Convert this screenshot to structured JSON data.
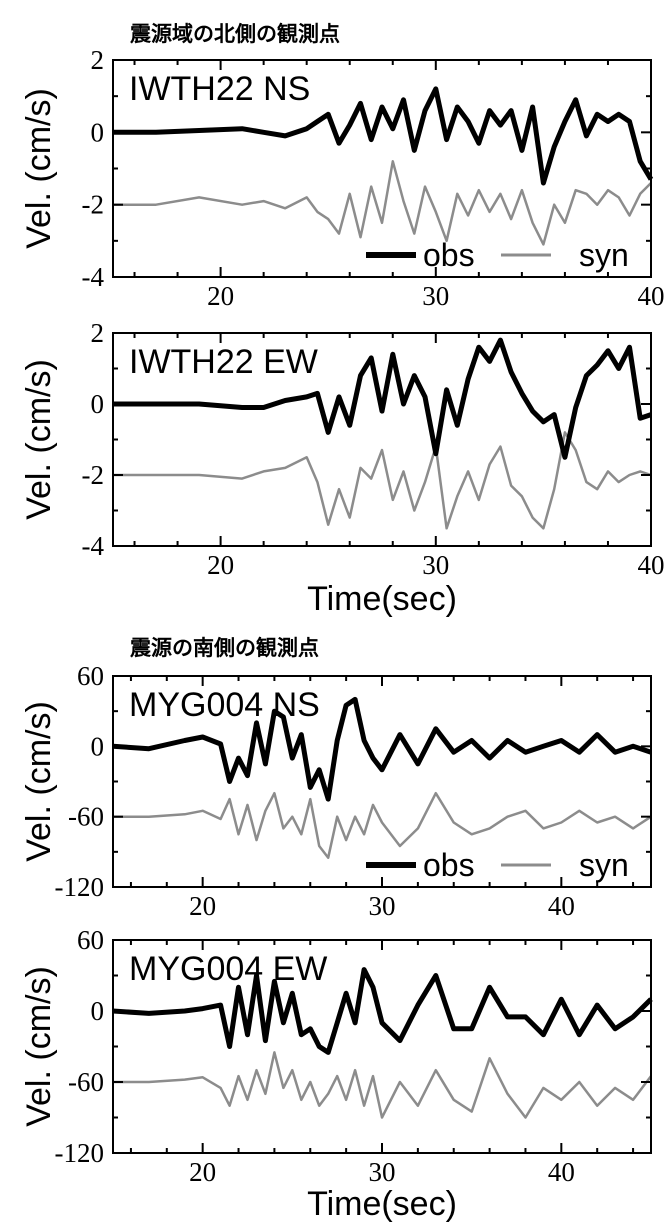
{
  "sections": [
    {
      "heading": "震源域の北側の観測点"
    },
    {
      "heading": "震源の南側の観測点"
    }
  ],
  "colors": {
    "obs": "#000000",
    "syn": "#8c8c8c",
    "frame": "#000000"
  },
  "chart_data": [
    {
      "type": "line",
      "station": "IWTH22 NS",
      "ylabel": "Vel. (cm/s)",
      "xlabel": "",
      "xlim": [
        15,
        40
      ],
      "ylim": [
        -4,
        2
      ],
      "xticks": [
        20,
        30,
        40
      ],
      "yticks": [
        2,
        0,
        -2,
        -4
      ],
      "legend": {
        "position": "bottom-right",
        "labels": [
          "obs",
          "syn"
        ]
      },
      "series": [
        {
          "name": "obs",
          "x": [
            15,
            17,
            19,
            21,
            22,
            23,
            24,
            24.5,
            25,
            25.5,
            26,
            26.5,
            27,
            27.5,
            28,
            28.5,
            29,
            29.5,
            30,
            30.5,
            31,
            31.5,
            32,
            32.5,
            33,
            33.5,
            34,
            34.5,
            35,
            35.5,
            36,
            36.5,
            37,
            37.5,
            38,
            38.5,
            39,
            39.5,
            40
          ],
          "y": [
            0,
            0,
            0.05,
            0.1,
            0,
            -0.1,
            0.1,
            0.3,
            0.5,
            -0.3,
            0.2,
            0.8,
            -0.2,
            0.7,
            0.1,
            0.9,
            -0.5,
            0.6,
            1.2,
            -0.2,
            0.7,
            0.3,
            -0.3,
            0.6,
            0.2,
            0.6,
            -0.5,
            0.7,
            -1.4,
            -0.4,
            0.3,
            0.9,
            -0.1,
            0.5,
            0.3,
            0.5,
            0.3,
            -0.8,
            -1.3
          ]
        },
        {
          "name": "syn",
          "x": [
            15,
            17,
            19,
            21,
            22,
            23,
            24,
            24.5,
            25,
            25.5,
            26,
            26.5,
            27,
            27.5,
            28,
            28.5,
            29,
            29.5,
            30,
            30.5,
            31,
            31.5,
            32,
            32.5,
            33,
            33.5,
            34,
            34.5,
            35,
            35.5,
            36,
            36.5,
            37,
            37.5,
            38,
            38.5,
            39,
            39.5,
            40
          ],
          "y": [
            -2,
            -2,
            -1.8,
            -2,
            -1.9,
            -2.1,
            -1.8,
            -2.2,
            -2.4,
            -2.8,
            -1.7,
            -2.9,
            -1.5,
            -2.5,
            -0.8,
            -1.9,
            -2.8,
            -1.5,
            -2.2,
            -3,
            -1.7,
            -2.3,
            -1.6,
            -2.2,
            -1.7,
            -2.4,
            -1.6,
            -2.5,
            -3.1,
            -2,
            -2.5,
            -1.6,
            -1.7,
            -2,
            -1.6,
            -1.8,
            -2.3,
            -1.7,
            -1.4
          ]
        }
      ]
    },
    {
      "type": "line",
      "station": "IWTH22 EW",
      "ylabel": "Vel. (cm/s)",
      "xlabel": "Time(sec)",
      "xlim": [
        15,
        40
      ],
      "ylim": [
        -4,
        2
      ],
      "xticks": [
        20,
        30,
        40
      ],
      "yticks": [
        2,
        0,
        -2,
        -4
      ],
      "series": [
        {
          "name": "obs",
          "x": [
            15,
            17,
            19,
            21,
            22,
            23,
            24,
            24.5,
            25,
            25.5,
            26,
            26.5,
            27,
            27.5,
            28,
            28.5,
            29,
            29.5,
            30,
            30.5,
            31,
            31.5,
            32,
            32.5,
            33,
            33.5,
            34,
            34.5,
            35,
            35.5,
            36,
            36.5,
            37,
            37.5,
            38,
            38.5,
            39,
            39.5,
            40
          ],
          "y": [
            0,
            0,
            0,
            -0.1,
            -0.1,
            0.1,
            0.2,
            0.3,
            -0.8,
            0.2,
            -0.6,
            0.8,
            1.3,
            -0.2,
            1.4,
            0,
            0.8,
            0.2,
            -1.4,
            0.4,
            -0.6,
            0.7,
            1.6,
            1.2,
            1.8,
            0.9,
            0.3,
            -0.2,
            -0.5,
            -0.3,
            -1.5,
            -0.1,
            0.8,
            1.1,
            1.5,
            1.0,
            1.6,
            -0.4,
            -0.3
          ]
        },
        {
          "name": "syn",
          "x": [
            15,
            17,
            19,
            21,
            22,
            23,
            24,
            24.5,
            25,
            25.5,
            26,
            26.5,
            27,
            27.5,
            28,
            28.5,
            29,
            29.5,
            30,
            30.5,
            31,
            31.5,
            32,
            32.5,
            33,
            33.5,
            34,
            34.5,
            35,
            35.5,
            36,
            36.5,
            37,
            37.5,
            38,
            38.5,
            39,
            39.5,
            40
          ],
          "y": [
            -2,
            -2,
            -2,
            -2.1,
            -1.9,
            -1.8,
            -1.5,
            -2.2,
            -3.4,
            -2.4,
            -3.2,
            -1.8,
            -2.1,
            -1.3,
            -2.7,
            -1.9,
            -3.0,
            -2.2,
            -1.2,
            -3.5,
            -2.6,
            -1.9,
            -2.7,
            -1.7,
            -1.2,
            -2.3,
            -2.6,
            -3.2,
            -3.5,
            -2.4,
            -0.8,
            -1.3,
            -2.2,
            -2.4,
            -1.9,
            -2.2,
            -2.0,
            -1.9,
            -2.0
          ]
        }
      ]
    },
    {
      "type": "line",
      "station": "MYG004 NS",
      "ylabel": "Vel. (cm/s)",
      "xlabel": "",
      "xlim": [
        15,
        45
      ],
      "ylim": [
        -120,
        60
      ],
      "xticks": [
        20,
        30,
        40
      ],
      "yticks": [
        60,
        0,
        -60,
        -120
      ],
      "legend": {
        "position": "bottom-right",
        "labels": [
          "obs",
          "syn"
        ]
      },
      "series": [
        {
          "name": "obs",
          "x": [
            15,
            17,
            19,
            20,
            21,
            21.5,
            22,
            22.5,
            23,
            23.5,
            24,
            24.5,
            25,
            25.5,
            26,
            26.5,
            27,
            27.5,
            28,
            28.5,
            29,
            29.5,
            30,
            31,
            32,
            33,
            34,
            35,
            36,
            37,
            38,
            39,
            40,
            41,
            42,
            43,
            44,
            45
          ],
          "y": [
            0,
            -2,
            5,
            8,
            2,
            -30,
            -10,
            -25,
            20,
            -15,
            30,
            25,
            -10,
            10,
            -35,
            -20,
            -45,
            5,
            35,
            40,
            5,
            -10,
            -20,
            10,
            -15,
            15,
            -5,
            5,
            -10,
            5,
            -5,
            0,
            5,
            -5,
            10,
            -5,
            0,
            -5
          ]
        },
        {
          "name": "syn",
          "x": [
            15,
            17,
            19,
            20,
            21,
            21.5,
            22,
            22.5,
            23,
            23.5,
            24,
            24.5,
            25,
            25.5,
            26,
            26.5,
            27,
            27.5,
            28,
            28.5,
            29,
            29.5,
            30,
            31,
            32,
            33,
            34,
            35,
            36,
            37,
            38,
            39,
            40,
            41,
            42,
            43,
            44,
            45
          ],
          "y": [
            -60,
            -60,
            -58,
            -55,
            -62,
            -45,
            -75,
            -50,
            -80,
            -55,
            -40,
            -70,
            -60,
            -75,
            -45,
            -85,
            -95,
            -60,
            -80,
            -60,
            -75,
            -50,
            -65,
            -85,
            -70,
            -40,
            -65,
            -75,
            -70,
            -60,
            -55,
            -70,
            -65,
            -55,
            -65,
            -60,
            -70,
            -60
          ]
        }
      ]
    },
    {
      "type": "line",
      "station": "MYG004 EW",
      "ylabel": "Vel. (cm/s)",
      "xlabel": "Time(sec)",
      "xlim": [
        15,
        45
      ],
      "ylim": [
        -120,
        60
      ],
      "xticks": [
        20,
        30,
        40
      ],
      "yticks": [
        60,
        0,
        -60,
        -120
      ],
      "series": [
        {
          "name": "obs",
          "x": [
            15,
            17,
            19,
            20,
            21,
            21.5,
            22,
            22.5,
            23,
            23.5,
            24,
            24.5,
            25,
            25.5,
            26,
            26.5,
            27,
            27.5,
            28,
            28.5,
            29,
            29.5,
            30,
            31,
            32,
            33,
            34,
            35,
            36,
            37,
            38,
            39,
            40,
            41,
            42,
            43,
            44,
            45
          ],
          "y": [
            0,
            -2,
            0,
            2,
            5,
            -30,
            20,
            -20,
            30,
            -25,
            25,
            -10,
            15,
            -20,
            -15,
            -30,
            -35,
            -10,
            15,
            -10,
            35,
            20,
            -10,
            -25,
            5,
            30,
            -15,
            -15,
            20,
            -5,
            -5,
            -20,
            10,
            -20,
            5,
            -15,
            -5,
            10
          ]
        },
        {
          "name": "syn",
          "x": [
            15,
            17,
            19,
            20,
            21,
            21.5,
            22,
            22.5,
            23,
            23.5,
            24,
            24.5,
            25,
            25.5,
            26,
            26.5,
            27,
            27.5,
            28,
            28.5,
            29,
            29.5,
            30,
            31,
            32,
            33,
            34,
            35,
            36,
            37,
            38,
            39,
            40,
            41,
            42,
            43,
            44,
            45
          ],
          "y": [
            -60,
            -60,
            -58,
            -56,
            -65,
            -80,
            -55,
            -75,
            -50,
            -70,
            -35,
            -65,
            -50,
            -75,
            -60,
            -80,
            -70,
            -55,
            -75,
            -50,
            -80,
            -55,
            -90,
            -60,
            -80,
            -50,
            -75,
            -85,
            -40,
            -70,
            -90,
            -65,
            -75,
            -60,
            -80,
            -65,
            -75,
            -55
          ]
        }
      ]
    }
  ]
}
